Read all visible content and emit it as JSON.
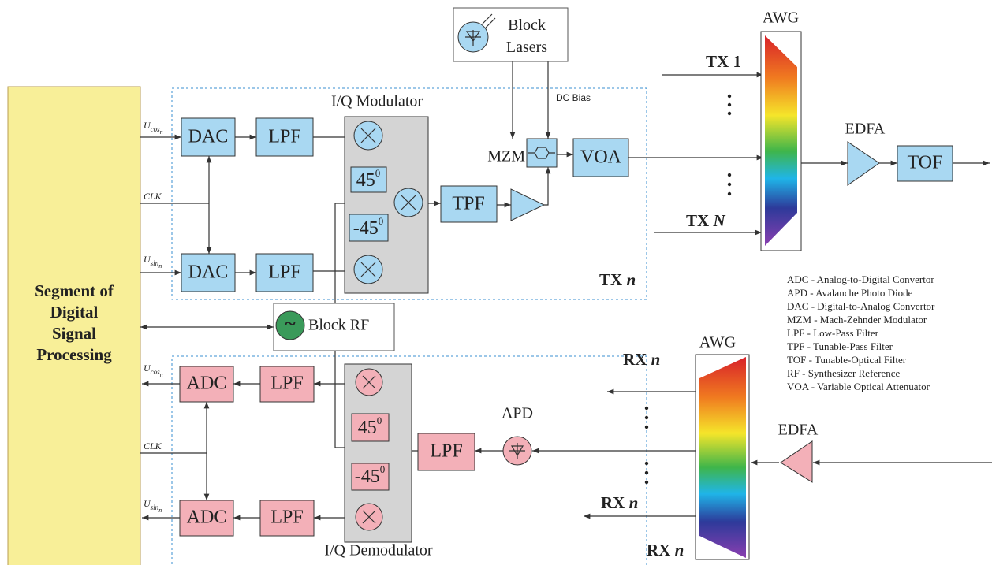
{
  "dsp": {
    "lines": [
      "Segment of",
      "Digital",
      "Signal",
      "Processing"
    ]
  },
  "tx": {
    "label_cos": {
      "base": "U",
      "sub": "cos",
      "index": "n"
    },
    "label_clk": "CLK",
    "label_sin": {
      "base": "U",
      "sub": "sin",
      "index": "n"
    },
    "dac_1": "DAC",
    "dac_2": "DAC",
    "lpf_1": "LPF",
    "lpf_2": "LPF",
    "modulator": "I/Q Modulator",
    "phase_1": {
      "value": "45",
      "sup": "0"
    },
    "phase_2": {
      "value": "-45",
      "sup": "0"
    },
    "tpf": "TPF",
    "mzm": "MZM",
    "voa": "VOA",
    "lasers": [
      "Block",
      "Lasers"
    ],
    "dc_bias": "DC Bias",
    "section": {
      "name": "TX",
      "index": "n"
    },
    "awg": "AWG",
    "input_1": {
      "name": "TX",
      "index": "1"
    },
    "input_n": {
      "name": "TX",
      "index": "N"
    },
    "edfa": "EDFA",
    "tof": "TOF"
  },
  "rf": {
    "symbol": "~",
    "name": "Block RF"
  },
  "rx": {
    "label_cos": {
      "base": "U",
      "sub": "cos",
      "index": "n"
    },
    "label_clk": "CLK",
    "label_sin": {
      "base": "U",
      "sub": "sin",
      "index": "n"
    },
    "adc_1": "ADC",
    "adc_2": "ADC",
    "lpf_1": "LPF",
    "lpf_2": "LPF",
    "lpf_3": "LPF",
    "demodulator": "I/Q Demodulator",
    "phase_1": {
      "value": "45",
      "sup": "0"
    },
    "phase_2": {
      "value": "-45",
      "sup": "0"
    },
    "apd": "APD",
    "section": {
      "name": "RX",
      "index": "n"
    },
    "awg": "AWG",
    "output_1": {
      "name": "RX",
      "index": "n"
    },
    "output_n": {
      "name": "RX",
      "index": "n"
    },
    "edfa": "EDFA"
  },
  "legend": [
    "ADC - Analog-to-Digital Convertor",
    "APD -  Avalanche Photo Diode",
    "DAC - Digital-to-Analog Convertor",
    "MZM - Mach-Zehnder Modulator",
    "LPF - Low-Pass Filter",
    "TPF - Tunable-Pass Filter",
    "TOF - Tunable-Optical Filter",
    "RF -  Synthesizer Reference",
    "VOA - Variable Optical Attenuator"
  ]
}
